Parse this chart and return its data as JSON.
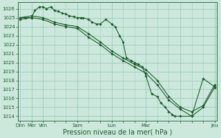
{
  "bg_color": "#cce8dc",
  "grid_color": "#99ccbb",
  "line_color": "#1a5c2a",
  "marker_color": "#1a5c2a",
  "xlabel": "Pression niveau de la mer( hPa )",
  "xlabel_fontsize": 7,
  "ylim": [
    1013.5,
    1026.7
  ],
  "yticks": [
    1014,
    1015,
    1016,
    1017,
    1018,
    1019,
    1020,
    1021,
    1022,
    1023,
    1024,
    1025,
    1026
  ],
  "series": [
    {
      "x": [
        0,
        0.5,
        1,
        1.3,
        1.7,
        2,
        2.3,
        2.7,
        3,
        3.3,
        3.7,
        4,
        4.3,
        4.7,
        5,
        5.3,
        5.5,
        6,
        6.3,
        6.7,
        7,
        7.5,
        8,
        8.3,
        8.7,
        9,
        9.3,
        9.7,
        10,
        10.3,
        10.7,
        11,
        11.5,
        12,
        12.3,
        12.7,
        13,
        13.3,
        13.5,
        14,
        15,
        16,
        17
      ],
      "y": [
        1025.0,
        1025.0,
        1025.0,
        1025.8,
        1026.2,
        1026.2,
        1026.0,
        1026.2,
        1025.8,
        1025.7,
        1025.5,
        1025.4,
        1025.2,
        1025.1,
        1025.0,
        1025.0,
        1025.0,
        1024.8,
        1024.5,
        1024.3,
        1024.3,
        1024.8,
        1024.3,
        1024.0,
        1023.0,
        1022.3,
        1020.5,
        1020.2,
        1020.0,
        1019.8,
        1019.5,
        1018.5,
        1016.5,
        1016.2,
        1015.5,
        1015.0,
        1014.5,
        1014.2,
        1014.0,
        1014.0,
        1014.0,
        1018.2,
        1017.3
      ]
    },
    {
      "x": [
        0,
        1,
        2,
        3,
        4,
        5,
        6,
        7,
        8,
        9,
        10,
        11,
        12,
        13,
        14,
        15,
        16,
        17
      ],
      "y": [
        1025.0,
        1025.2,
        1025.0,
        1024.5,
        1024.2,
        1024.0,
        1023.2,
        1022.3,
        1021.3,
        1020.5,
        1019.8,
        1019.2,
        1018.0,
        1016.2,
        1015.0,
        1014.5,
        1015.2,
        1017.5
      ]
    },
    {
      "x": [
        0,
        1,
        2,
        3,
        4,
        5,
        6,
        7,
        8,
        9,
        10,
        11,
        12,
        13,
        14,
        15,
        16,
        17
      ],
      "y": [
        1024.8,
        1025.0,
        1024.8,
        1024.3,
        1024.0,
        1023.8,
        1022.8,
        1022.0,
        1021.0,
        1020.2,
        1019.5,
        1018.8,
        1017.5,
        1015.8,
        1014.8,
        1014.0,
        1015.0,
        1017.2
      ]
    }
  ],
  "tick_positions": [
    0,
    1,
    2,
    5,
    8,
    11,
    14,
    17
  ],
  "tick_names": [
    "Dim",
    "Mer",
    "Ven",
    "Sam",
    "Lun",
    "Mar",
    "",
    "Jeu"
  ],
  "figsize": [
    3.2,
    2.0
  ],
  "dpi": 100
}
